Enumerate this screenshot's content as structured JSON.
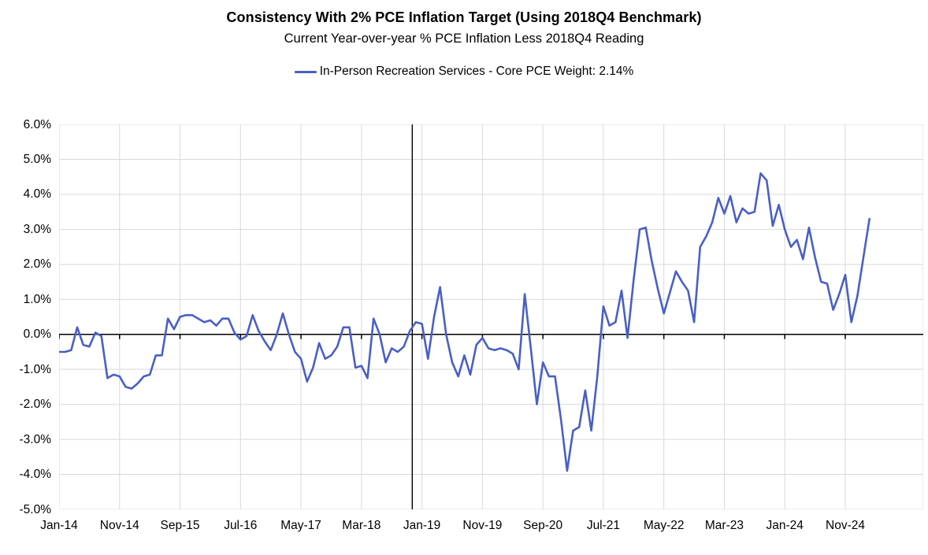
{
  "title": "Consistency With 2% PCE Inflation Target (Using 2018Q4 Benchmark)",
  "subtitle": "Current Year-over-year % PCE Inflation Less 2018Q4 Reading",
  "legend": {
    "label": "In-Person Recreation Services - Core PCE Weight: 2.14%",
    "line_color": "#4a5fc4"
  },
  "chart_data": {
    "type": "line",
    "title": "Consistency With 2% PCE Inflation Target (Using 2018Q4 Benchmark)",
    "subtitle": "Current Year-over-year % PCE Inflation Less 2018Q4 Reading",
    "x_start_month": "Jan-2014",
    "x_end_month": "Mar-2025",
    "x_tick_labels": [
      "Jan-14",
      "Nov-14",
      "Sep-15",
      "Jul-16",
      "May-17",
      "Mar-18",
      "Jan-19",
      "Nov-19",
      "Sep-20",
      "Jul-21",
      "May-22",
      "Mar-23",
      "Jan-24",
      "Nov-24"
    ],
    "x_tick_interval_months": 10,
    "y_tick_labels": [
      "6.0%",
      "5.0%",
      "4.0%",
      "3.0%",
      "2.0%",
      "1.0%",
      "0.0%",
      "-1.0%",
      "-2.0%",
      "-3.0%",
      "-4.0%",
      "-5.0%"
    ],
    "ylim": [
      -5,
      6
    ],
    "grid": true,
    "grid_color": "#d9d9d9",
    "axis_color": "#000000",
    "zero_axis": true,
    "benchmark_vline": {
      "label": "2018Q4",
      "month": "Dec-18"
    },
    "legend_position": "top-center",
    "series": [
      {
        "name": "In-Person Recreation Services - Core PCE Weight: 2.14%",
        "color": "#4a5fc4",
        "unit": "percent",
        "values": [
          -0.5,
          -0.5,
          -0.45,
          0.2,
          -0.3,
          -0.35,
          0.05,
          -0.05,
          -1.25,
          -1.15,
          -1.2,
          -1.5,
          -1.55,
          -1.4,
          -1.2,
          -1.15,
          -0.6,
          -0.6,
          0.45,
          0.15,
          0.5,
          0.55,
          0.55,
          0.45,
          0.35,
          0.4,
          0.25,
          0.45,
          0.45,
          0.05,
          -0.15,
          -0.05,
          0.55,
          0.1,
          -0.2,
          -0.45,
          0.0,
          0.6,
          0.0,
          -0.5,
          -0.7,
          -1.35,
          -0.95,
          -0.25,
          -0.7,
          -0.6,
          -0.35,
          0.2,
          0.2,
          -0.95,
          -0.9,
          -1.25,
          0.45,
          0.0,
          -0.8,
          -0.4,
          -0.5,
          -0.35,
          0.1,
          0.35,
          0.3,
          -0.7,
          0.5,
          1.35,
          0.0,
          -0.8,
          -1.2,
          -0.6,
          -1.15,
          -0.3,
          -0.1,
          -0.4,
          -0.45,
          -0.4,
          -0.45,
          -0.55,
          -1.0,
          1.15,
          -0.4,
          -2.0,
          -0.8,
          -1.2,
          -1.2,
          -2.45,
          -3.9,
          -2.75,
          -2.65,
          -1.6,
          -2.75,
          -1.2,
          0.8,
          0.25,
          0.35,
          1.25,
          -0.1,
          1.55,
          3.0,
          3.05,
          2.1,
          1.3,
          0.6,
          1.2,
          1.8,
          1.5,
          1.25,
          0.35,
          2.5,
          2.8,
          3.2,
          3.9,
          3.45,
          3.95,
          3.2,
          3.6,
          3.45,
          3.5,
          4.6,
          4.4,
          3.1,
          3.7,
          3.0,
          2.5,
          2.7,
          2.15,
          3.05,
          2.2,
          1.5,
          1.45,
          0.7,
          1.15,
          1.7,
          0.35,
          1.1,
          2.2,
          3.3
        ]
      }
    ]
  }
}
